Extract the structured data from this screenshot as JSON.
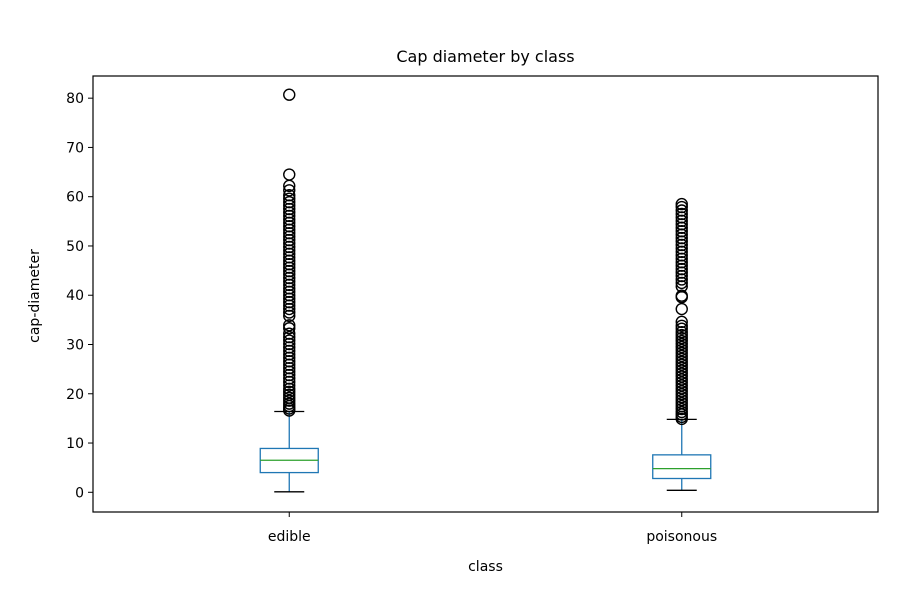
{
  "chart_data": {
    "type": "box",
    "title": "Cap diameter by class",
    "xlabel": "class",
    "ylabel": "cap-diameter",
    "categories": [
      "edible",
      "poisonous"
    ],
    "ylim": [
      -4.0,
      84.5
    ],
    "yticks": [
      0,
      10,
      20,
      30,
      40,
      50,
      60,
      70,
      80
    ],
    "grid": false,
    "colors": {
      "box": "#1f77b4",
      "median": "#2ca02c",
      "whisker": "#1f77b4",
      "cap": "#000000",
      "outlier": "#000000",
      "frame": "#000000"
    },
    "boxes": [
      {
        "category": "edible",
        "whisker_low": 0.1,
        "q1": 4.0,
        "median": 6.5,
        "q3": 8.9,
        "whisker_high": 16.4,
        "outliers": [
          16.6,
          17.0,
          17.5,
          18.0,
          18.6,
          19.2,
          19.8,
          20.4,
          21.0,
          21.7,
          22.4,
          23.1,
          23.8,
          24.5,
          25.2,
          25.9,
          26.6,
          27.3,
          28.0,
          28.7,
          29.4,
          30.1,
          30.8,
          31.5,
          32.2,
          33.3,
          33.9,
          35.8,
          36.5,
          37.2,
          37.9,
          38.6,
          39.3,
          40.0,
          40.7,
          41.4,
          42.1,
          42.8,
          43.5,
          44.2,
          44.9,
          45.6,
          46.3,
          47.0,
          47.7,
          48.4,
          49.1,
          49.8,
          50.5,
          51.2,
          51.9,
          52.6,
          53.3,
          54.0,
          54.7,
          55.4,
          56.1,
          56.8,
          57.5,
          58.2,
          58.9,
          59.6,
          60.3,
          61.3,
          62.2,
          64.5,
          80.7
        ]
      },
      {
        "category": "poisonous",
        "whisker_low": 0.4,
        "q1": 2.8,
        "median": 4.8,
        "q3": 7.6,
        "whisker_high": 14.8,
        "outliers": [
          14.9,
          15.3,
          15.8,
          16.3,
          16.9,
          17.5,
          18.1,
          18.7,
          19.3,
          19.9,
          20.5,
          21.1,
          21.7,
          22.3,
          22.9,
          23.5,
          24.1,
          24.7,
          25.3,
          25.9,
          26.5,
          27.1,
          27.7,
          28.3,
          28.9,
          29.5,
          30.1,
          30.7,
          31.3,
          31.9,
          32.5,
          33.2,
          33.8,
          34.6,
          37.2,
          39.6,
          39.9,
          41.8,
          42.5,
          43.2,
          43.9,
          44.6,
          45.3,
          46.0,
          46.7,
          47.4,
          48.1,
          48.8,
          49.5,
          50.2,
          50.9,
          51.6,
          52.3,
          53.0,
          53.7,
          54.4,
          55.1,
          55.8,
          56.5,
          57.2,
          57.9,
          58.5
        ]
      }
    ]
  }
}
